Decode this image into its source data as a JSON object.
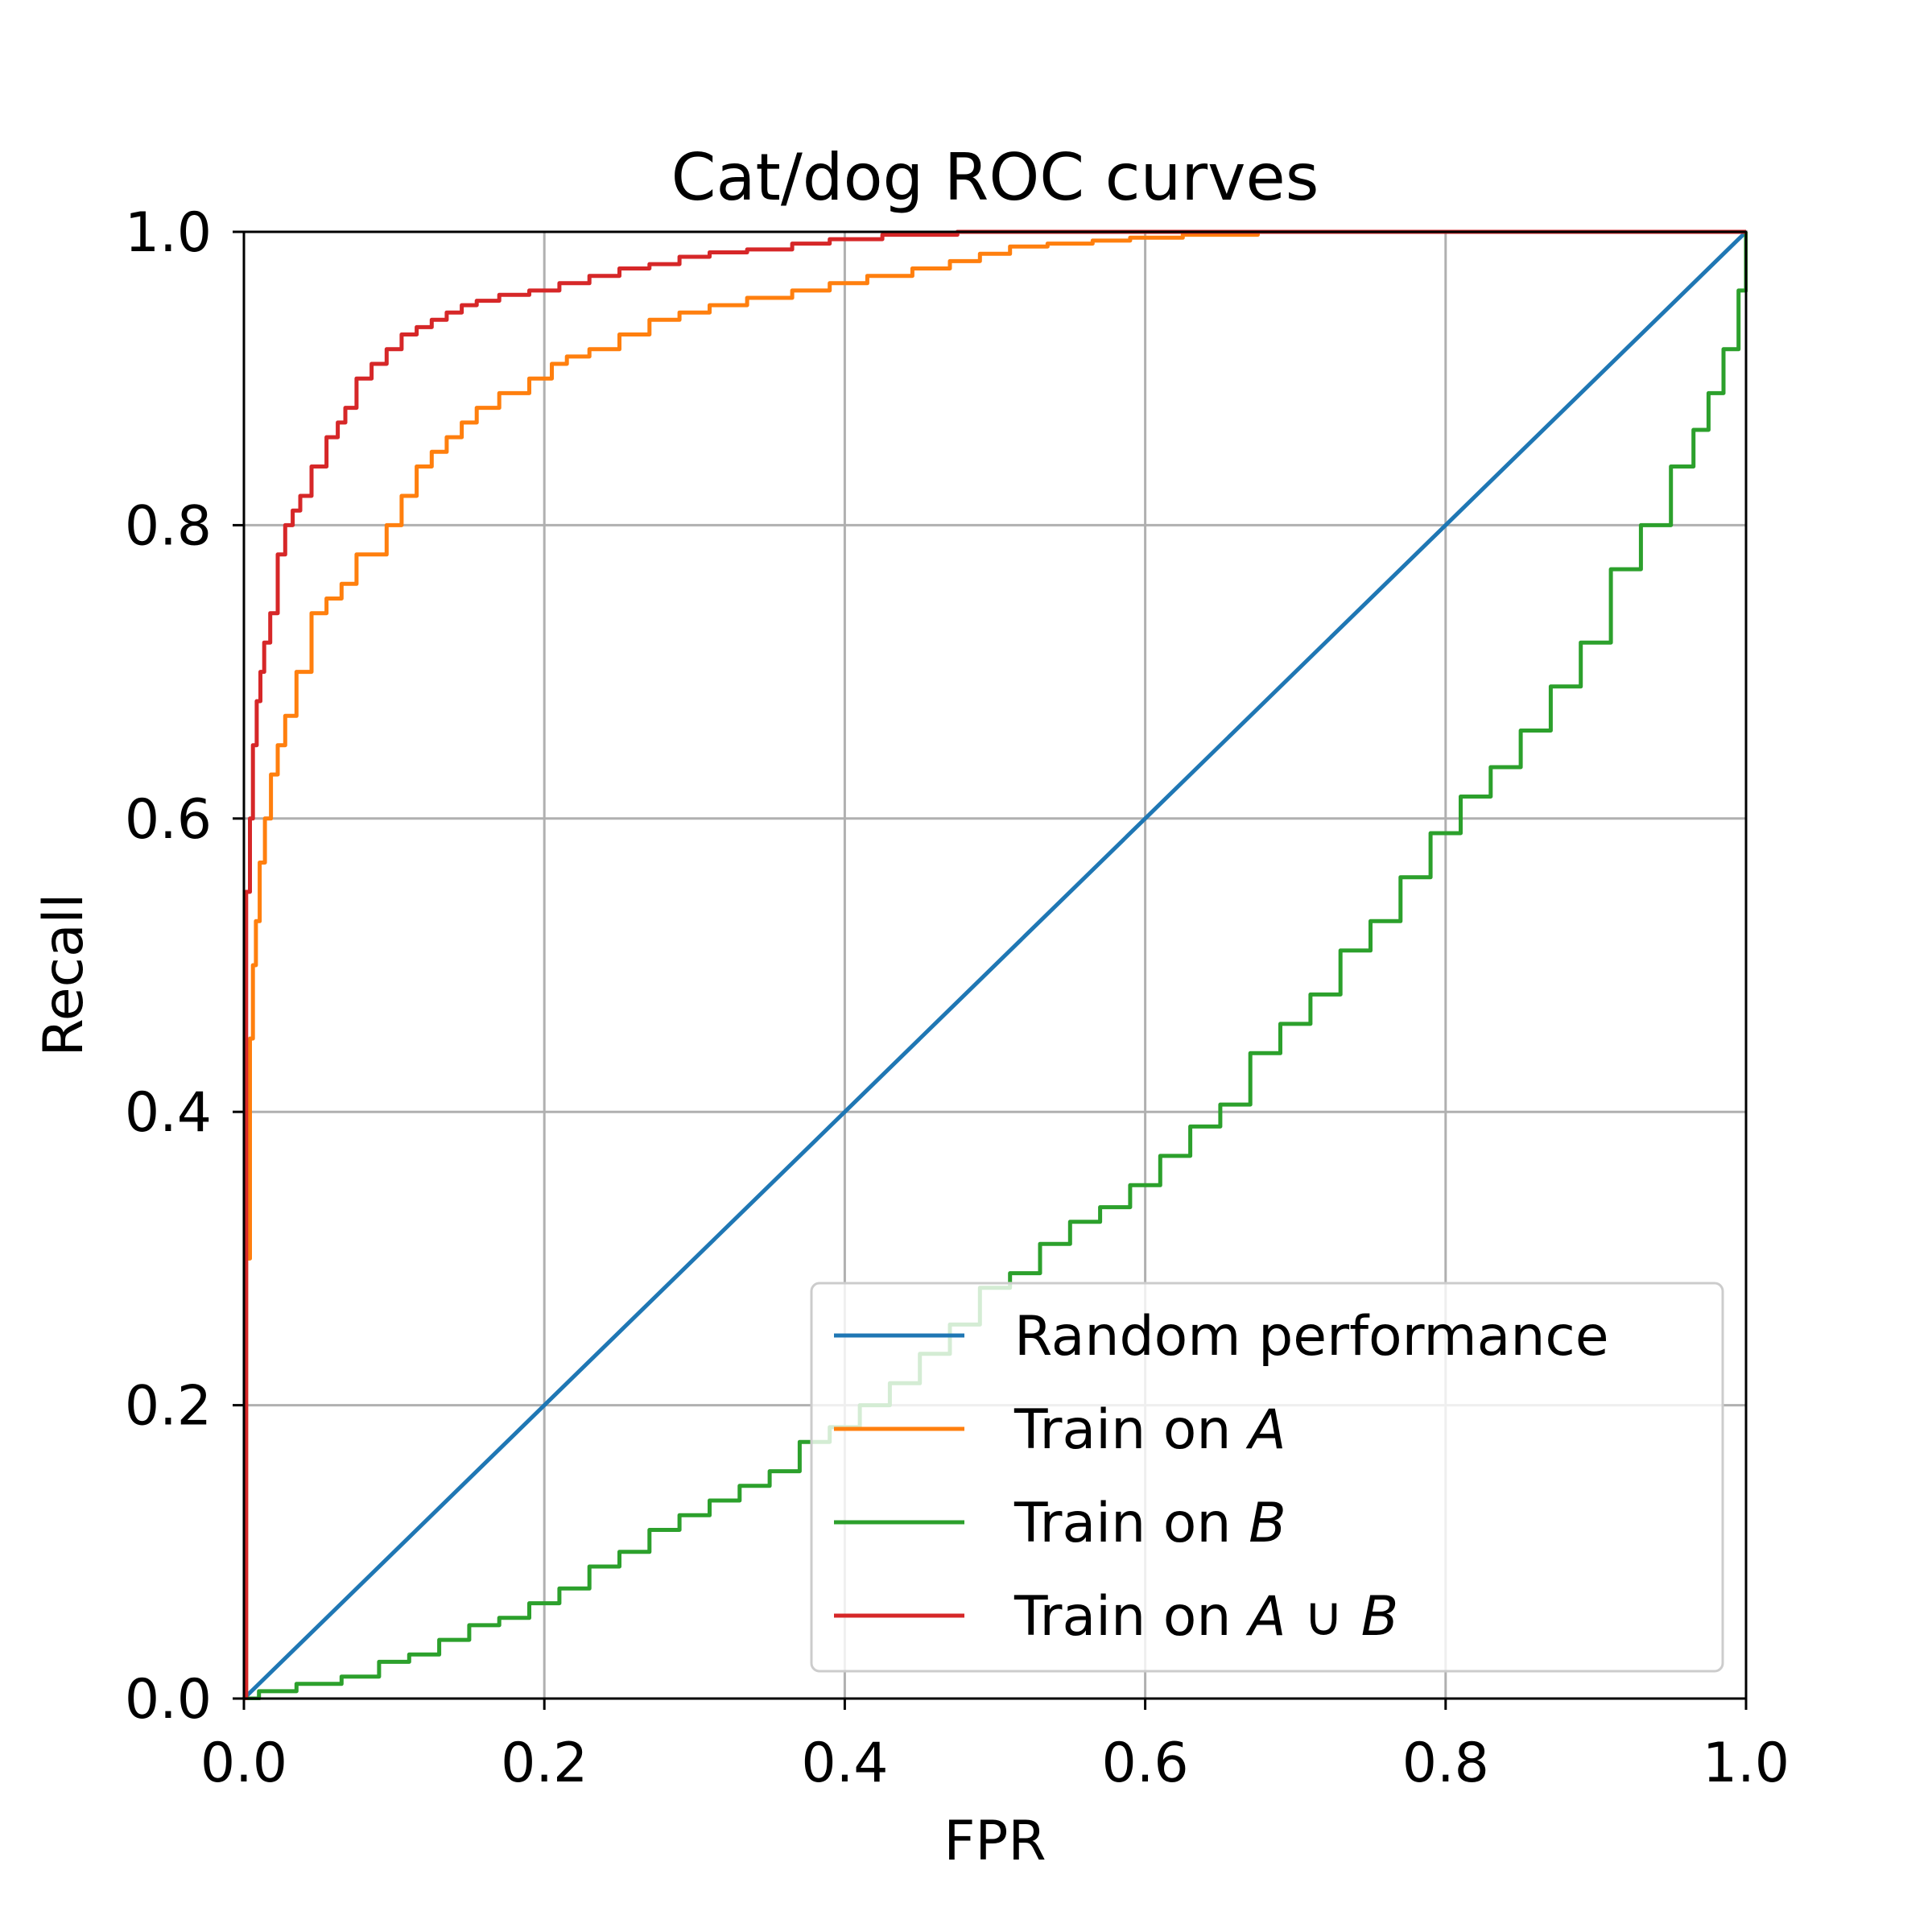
{
  "chart_data": {
    "type": "line",
    "title": "Cat/dog ROC curves",
    "xlabel": "FPR",
    "ylabel": "Recall",
    "xlim": [
      0.0,
      1.0
    ],
    "ylim": [
      0.0,
      1.0
    ],
    "xticks": [
      "0.0",
      "0.2",
      "0.4",
      "0.6",
      "0.8",
      "1.0"
    ],
    "yticks": [
      "0.0",
      "0.2",
      "0.4",
      "0.6",
      "0.8",
      "1.0"
    ],
    "xtick_values": [
      0.0,
      0.2,
      0.4,
      0.6,
      0.8,
      1.0
    ],
    "ytick_values": [
      0.0,
      0.2,
      0.4,
      0.6,
      0.8,
      1.0
    ],
    "grid": true,
    "legend_position": "lower-right",
    "series": [
      {
        "name": "Random performance",
        "legend": {
          "text": "Random performance"
        },
        "color": "#1f77b4",
        "x": [
          0.0,
          1.0
        ],
        "y": [
          0.0,
          1.0
        ]
      },
      {
        "name": "Train on A",
        "legend": {
          "text": "Train on ",
          "italic": "A"
        },
        "color": "#ff7f0e",
        "x": [
          0.0,
          0.003,
          0.005,
          0.007,
          0.009,
          0.012,
          0.016,
          0.02,
          0.025,
          0.03,
          0.04,
          0.05,
          0.06,
          0.07,
          0.08,
          0.09,
          0.1,
          0.11,
          0.12,
          0.13,
          0.14,
          0.15,
          0.16,
          0.18,
          0.2,
          0.21,
          0.22,
          0.24,
          0.26,
          0.28,
          0.3,
          0.32,
          0.35,
          0.38,
          0.4,
          0.43,
          0.46,
          0.48,
          0.5,
          0.52,
          0.55,
          0.58,
          0.6,
          0.65,
          0.7,
          0.8,
          1.0
        ],
        "y": [
          0.0,
          0.3,
          0.45,
          0.5,
          0.53,
          0.57,
          0.6,
          0.63,
          0.65,
          0.67,
          0.7,
          0.74,
          0.75,
          0.76,
          0.78,
          0.78,
          0.8,
          0.82,
          0.84,
          0.85,
          0.86,
          0.87,
          0.88,
          0.89,
          0.9,
          0.91,
          0.915,
          0.92,
          0.93,
          0.94,
          0.945,
          0.95,
          0.955,
          0.96,
          0.965,
          0.97,
          0.975,
          0.98,
          0.985,
          0.99,
          0.992,
          0.994,
          0.996,
          0.998,
          1.0,
          1.0,
          1.0
        ]
      },
      {
        "name": "Train on B",
        "legend": {
          "text": "Train on ",
          "italic": "B"
        },
        "color": "#2ca02c",
        "x": [
          0.0,
          0.02,
          0.05,
          0.08,
          0.1,
          0.12,
          0.14,
          0.16,
          0.18,
          0.2,
          0.22,
          0.24,
          0.26,
          0.28,
          0.3,
          0.32,
          0.34,
          0.36,
          0.38,
          0.4,
          0.42,
          0.44,
          0.46,
          0.48,
          0.5,
          0.52,
          0.54,
          0.56,
          0.58,
          0.6,
          0.62,
          0.64,
          0.66,
          0.68,
          0.7,
          0.72,
          0.74,
          0.76,
          0.78,
          0.8,
          0.82,
          0.84,
          0.86,
          0.88,
          0.9,
          0.92,
          0.94,
          0.96,
          0.97,
          0.98,
          0.99,
          1.0,
          1.0
        ],
        "y": [
          0.0,
          0.005,
          0.01,
          0.015,
          0.025,
          0.03,
          0.04,
          0.05,
          0.055,
          0.065,
          0.075,
          0.09,
          0.1,
          0.115,
          0.125,
          0.135,
          0.145,
          0.155,
          0.175,
          0.185,
          0.2,
          0.215,
          0.235,
          0.255,
          0.28,
          0.29,
          0.31,
          0.325,
          0.335,
          0.35,
          0.37,
          0.39,
          0.405,
          0.44,
          0.46,
          0.48,
          0.51,
          0.53,
          0.56,
          0.59,
          0.615,
          0.635,
          0.66,
          0.69,
          0.72,
          0.77,
          0.8,
          0.84,
          0.865,
          0.89,
          0.92,
          0.96,
          1.0
        ]
      },
      {
        "name": "Train on A ∪ B",
        "legend": {
          "text": "Train on ",
          "italic": "A ∪ B"
        },
        "color": "#d62728",
        "x": [
          0.0,
          0.003,
          0.005,
          0.007,
          0.01,
          0.012,
          0.015,
          0.02,
          0.025,
          0.03,
          0.035,
          0.04,
          0.05,
          0.06,
          0.065,
          0.07,
          0.08,
          0.09,
          0.1,
          0.11,
          0.12,
          0.13,
          0.14,
          0.15,
          0.16,
          0.18,
          0.2,
          0.22,
          0.24,
          0.26,
          0.28,
          0.3,
          0.32,
          0.35,
          0.38,
          0.4,
          0.45,
          0.5,
          0.6,
          1.0
        ],
        "y": [
          0.0,
          0.55,
          0.6,
          0.65,
          0.68,
          0.7,
          0.72,
          0.74,
          0.78,
          0.8,
          0.81,
          0.82,
          0.84,
          0.86,
          0.87,
          0.88,
          0.9,
          0.91,
          0.92,
          0.93,
          0.935,
          0.94,
          0.945,
          0.95,
          0.953,
          0.957,
          0.96,
          0.965,
          0.97,
          0.975,
          0.978,
          0.983,
          0.986,
          0.988,
          0.992,
          0.995,
          0.998,
          1.0,
          1.0,
          1.0
        ]
      }
    ]
  }
}
